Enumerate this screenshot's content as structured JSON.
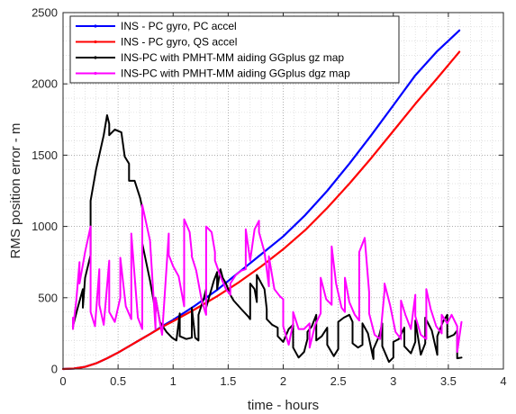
{
  "chart_data": {
    "type": "line",
    "xlabel": "time - hours",
    "ylabel": "RMS position error - m",
    "xlim": [
      0,
      4
    ],
    "ylim": [
      0,
      2500
    ],
    "xticks": [
      0,
      0.5,
      1,
      1.5,
      2,
      2.5,
      3,
      3.5,
      4
    ],
    "yticks": [
      0,
      500,
      1000,
      1500,
      2000,
      2500
    ],
    "xtick_labels": [
      "0",
      "0.5",
      "1",
      "1.5",
      "2",
      "2.5",
      "3",
      "3.5",
      "4"
    ],
    "ytick_labels": [
      "0",
      "500",
      "1000",
      "1500",
      "2000",
      "2500"
    ],
    "grid": "dotted, major and minor",
    "legend_position": "top-left",
    "series": [
      {
        "name": "INS - PC gyro, PC accel",
        "color": "#0000ff",
        "x": [
          0,
          0.1,
          0.2,
          0.3,
          0.4,
          0.5,
          0.6,
          0.7,
          0.8,
          0.9,
          1.0,
          1.2,
          1.4,
          1.6,
          1.8,
          2.0,
          2.2,
          2.4,
          2.6,
          2.8,
          3.0,
          3.2,
          3.4,
          3.6
        ],
        "y": [
          0,
          3,
          15,
          40,
          75,
          115,
          160,
          205,
          250,
          300,
          345,
          445,
          555,
          680,
          805,
          930,
          1080,
          1250,
          1440,
          1640,
          1850,
          2060,
          2230,
          2375
        ]
      },
      {
        "name": "INS - PC gyro, QS accel",
        "color": "#ff0000",
        "x": [
          0,
          0.1,
          0.2,
          0.3,
          0.4,
          0.5,
          0.6,
          0.7,
          0.8,
          0.9,
          1.0,
          1.2,
          1.4,
          1.6,
          1.8,
          2.0,
          2.2,
          2.4,
          2.6,
          2.8,
          3.0,
          3.2,
          3.4,
          3.6
        ],
        "y": [
          0,
          3,
          15,
          40,
          75,
          115,
          160,
          205,
          250,
          295,
          335,
          420,
          510,
          610,
          720,
          840,
          975,
          1130,
          1300,
          1480,
          1670,
          1860,
          2040,
          2225
        ]
      },
      {
        "name": "INS-PC with PMHT-MM aiding GGplus gz map",
        "color": "#000000",
        "x": [
          0.09,
          0.09,
          0.13,
          0.18,
          0.18,
          0.2,
          0.25,
          0.25,
          0.3,
          0.37,
          0.4,
          0.42,
          0.42,
          0.47,
          0.53,
          0.56,
          0.6,
          0.6,
          0.65,
          0.7,
          0.72,
          0.72,
          0.79,
          0.84,
          0.84,
          0.88,
          0.94,
          0.99,
          1.03,
          1.06,
          1.06,
          1.12,
          1.17,
          1.17,
          1.2,
          1.23,
          1.23,
          1.28,
          1.3,
          1.3,
          1.37,
          1.4,
          1.4,
          1.43,
          1.45,
          1.48,
          1.52,
          1.55,
          1.62,
          1.68,
          1.7,
          1.7,
          1.74,
          1.76,
          1.76,
          1.83,
          1.85,
          1.85,
          1.9,
          1.95,
          1.95,
          2.0,
          2.05,
          2.09,
          2.09,
          2.14,
          2.19,
          2.22,
          2.22,
          2.26,
          2.3,
          2.3,
          2.35,
          2.4,
          2.4,
          2.46,
          2.5,
          2.5,
          2.55,
          2.6,
          2.63,
          2.63,
          2.68,
          2.72,
          2.72,
          2.77,
          2.82,
          2.82,
          2.87,
          2.9,
          2.9,
          2.96,
          3.0,
          3.0,
          3.05,
          3.1,
          3.1,
          3.16,
          3.2,
          3.2,
          3.25,
          3.29,
          3.29,
          3.35,
          3.4,
          3.4,
          3.45,
          3.49,
          3.49,
          3.55,
          3.58,
          3.58,
          3.62
        ],
        "y": [
          330,
          300,
          420,
          560,
          430,
          640,
          800,
          1180,
          1400,
          1640,
          1780,
          1720,
          1640,
          1680,
          1660,
          1490,
          1440,
          1320,
          1320,
          1200,
          1130,
          880,
          620,
          400,
          500,
          330,
          260,
          220,
          200,
          390,
          230,
          210,
          220,
          430,
          220,
          200,
          380,
          500,
          560,
          430,
          620,
          680,
          560,
          700,
          640,
          600,
          520,
          480,
          420,
          370,
          350,
          600,
          560,
          470,
          660,
          560,
          420,
          350,
          310,
          290,
          230,
          190,
          280,
          310,
          150,
          80,
          120,
          210,
          260,
          300,
          380,
          200,
          230,
          290,
          170,
          90,
          140,
          330,
          360,
          380,
          330,
          180,
          150,
          170,
          320,
          250,
          70,
          140,
          230,
          320,
          160,
          50,
          80,
          190,
          210,
          290,
          160,
          110,
          190,
          340,
          100,
          180,
          360,
          270,
          100,
          230,
          330,
          380,
          220,
          240,
          270,
          75,
          80
        ]
      },
      {
        "name": "INS-PC with PMHT-MM aiding GGplus dgz map",
        "color": "#ff00ff",
        "x": [
          0.09,
          0.09,
          0.12,
          0.15,
          0.15,
          0.2,
          0.25,
          0.25,
          0.29,
          0.33,
          0.33,
          0.37,
          0.42,
          0.42,
          0.47,
          0.52,
          0.52,
          0.57,
          0.62,
          0.62,
          0.68,
          0.72,
          0.72,
          0.79,
          0.84,
          0.84,
          0.9,
          0.96,
          0.96,
          1.0,
          1.05,
          1.1,
          1.1,
          1.15,
          1.17,
          1.17,
          1.21,
          1.26,
          1.3,
          1.3,
          1.35,
          1.38,
          1.38,
          1.43,
          1.48,
          1.52,
          1.52,
          1.57,
          1.62,
          1.66,
          1.66,
          1.7,
          1.74,
          1.78,
          1.78,
          1.83,
          1.87,
          1.87,
          1.92,
          1.97,
          2.0,
          2.0,
          2.05,
          2.09,
          2.09,
          2.14,
          2.19,
          2.24,
          2.24,
          2.29,
          2.34,
          2.34,
          2.39,
          2.44,
          2.44,
          2.48,
          2.53,
          2.56,
          2.56,
          2.6,
          2.65,
          2.69,
          2.69,
          2.74,
          2.78,
          2.78,
          2.83,
          2.88,
          2.92,
          2.92,
          2.97,
          3.02,
          3.07,
          3.07,
          3.11,
          3.16,
          3.2,
          3.2,
          3.25,
          3.3,
          3.3,
          3.34,
          3.39,
          3.44,
          3.44,
          3.49,
          3.53,
          3.58,
          3.58,
          3.62
        ],
        "y": [
          360,
          280,
          480,
          750,
          600,
          820,
          1000,
          400,
          300,
          700,
          450,
          310,
          760,
          400,
          330,
          500,
          780,
          440,
          350,
          950,
          360,
          280,
          1150,
          900,
          280,
          500,
          240,
          950,
          800,
          720,
          650,
          440,
          1050,
          960,
          810,
          790,
          690,
          480,
          380,
          1000,
          960,
          820,
          760,
          650,
          560,
          520,
          600,
          660,
          690,
          700,
          980,
          760,
          980,
          1040,
          960,
          820,
          580,
          790,
          560,
          510,
          490,
          300,
          170,
          320,
          400,
          280,
          280,
          320,
          150,
          310,
          390,
          640,
          490,
          450,
          860,
          600,
          430,
          400,
          640,
          470,
          380,
          340,
          820,
          920,
          540,
          390,
          240,
          210,
          550,
          600,
          450,
          260,
          210,
          480,
          380,
          280,
          520,
          370,
          240,
          210,
          560,
          420,
          300,
          250,
          380,
          320,
          380,
          300,
          120,
          330
        ]
      }
    ]
  }
}
